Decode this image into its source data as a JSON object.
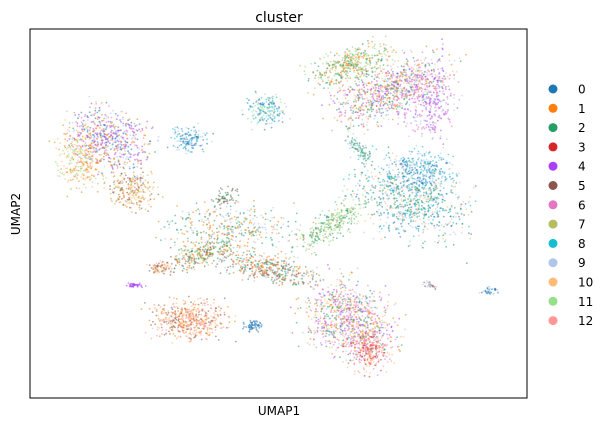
{
  "chart_data": {
    "type": "scatter",
    "title": "cluster",
    "xlabel": "UMAP1",
    "ylabel": "UMAP2",
    "xticks": [],
    "yticks": [],
    "grid": false,
    "legend_position": "right-outside",
    "series": [
      {
        "name": "0",
        "color": "#1f77b4"
      },
      {
        "name": "1",
        "color": "#ff7f0e"
      },
      {
        "name": "2",
        "color": "#279e68"
      },
      {
        "name": "3",
        "color": "#d62728"
      },
      {
        "name": "4",
        "color": "#aa40fc"
      },
      {
        "name": "5",
        "color": "#8c564b"
      },
      {
        "name": "6",
        "color": "#e377c2"
      },
      {
        "name": "7",
        "color": "#b5bd61"
      },
      {
        "name": "8",
        "color": "#17becf"
      },
      {
        "name": "9",
        "color": "#aec7e8"
      },
      {
        "name": "10",
        "color": "#ffbb78"
      },
      {
        "name": "11",
        "color": "#98df8a"
      },
      {
        "name": "12",
        "color": "#ff9896"
      }
    ]
  }
}
